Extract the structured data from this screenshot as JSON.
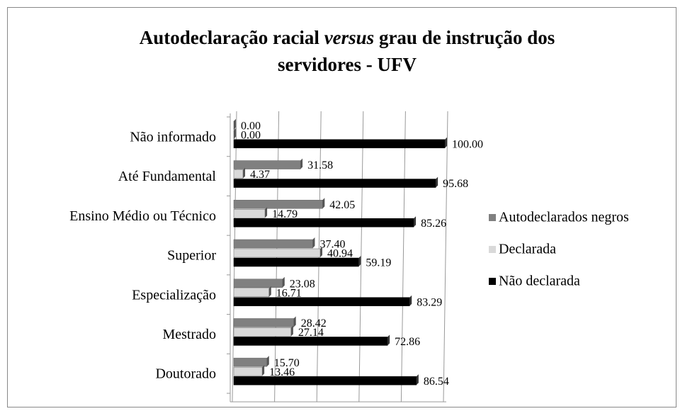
{
  "chart_data": {
    "type": "bar",
    "title": [
      "Autodeclaração racial ",
      "versus",
      " grau de instrução dos servidores - UFV"
    ],
    "categories": [
      "Não informado",
      "Até Fundamental",
      "Ensino Médio ou Técnico",
      "Superior",
      "Especialização",
      "Mestrado",
      "Doutorado"
    ],
    "series": [
      {
        "name": "Autodeclarados negros",
        "color": "#808080",
        "values": [
          0,
          31.58,
          42.05,
          37.4,
          23.08,
          28.42,
          15.7
        ],
        "value_labels": [
          "0.00",
          "31.58",
          "42.05",
          "37.40",
          "23.08",
          "28.42",
          "15.70"
        ]
      },
      {
        "name": "Declarada",
        "color": "#d9d9d9",
        "values": [
          0,
          4.37,
          14.79,
          40.94,
          16.71,
          27.14,
          13.46
        ],
        "value_labels": [
          "0.00",
          "4.37",
          "14.79",
          "40.94",
          "16.71",
          "27.14",
          "13.46"
        ]
      },
      {
        "name": "Não declarada",
        "color": "#000000",
        "values": [
          100,
          95.68,
          85.26,
          59.19,
          83.29,
          72.86,
          86.54
        ],
        "value_labels": [
          "100.00",
          "95.68",
          "85.26",
          "59.19",
          "83.29",
          "72.86",
          "86.54"
        ]
      }
    ],
    "xlim": [
      0,
      100
    ],
    "xticks": [
      0,
      20,
      40,
      60,
      80,
      100
    ],
    "grid": true,
    "legend": "right"
  }
}
